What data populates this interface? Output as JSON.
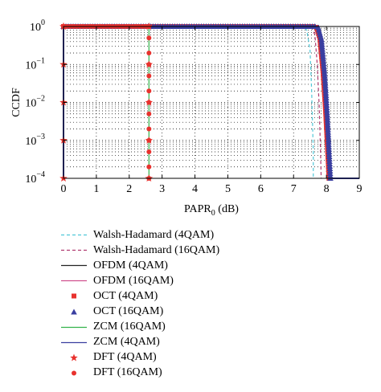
{
  "chart_data": {
    "type": "line",
    "title": "",
    "xlabel": "PAPR",
    "xlabel_sub": "0",
    "xlabel_unit": " (dB)",
    "ylabel": "CCDF",
    "xlim": [
      0,
      9
    ],
    "ylim": [
      0.0001,
      1
    ],
    "yscale": "log",
    "grid": true,
    "legend_position": "below",
    "x_ticks": [
      "0",
      "1",
      "2",
      "3",
      "4",
      "5",
      "6",
      "7",
      "8",
      "9"
    ],
    "y_ticks": [
      {
        "base": "10",
        "exp": "0"
      },
      {
        "base": "10",
        "exp": "−1"
      },
      {
        "base": "10",
        "exp": "−2"
      },
      {
        "base": "10",
        "exp": "−3"
      },
      {
        "base": "10",
        "exp": "−4"
      }
    ],
    "series": [
      {
        "name": "Walsh-Hadamard (4QAM)",
        "color": "#4fc8d8",
        "style": "dashed",
        "x": [
          0,
          7.2,
          7.3,
          7.4,
          7.5,
          7.55,
          7.6,
          7.6
        ],
        "y": [
          1,
          1,
          0.98,
          0.8,
          0.25,
          0.02,
          0.0005,
          0.0001
        ]
      },
      {
        "name": "Walsh-Hadamard (16QAM)",
        "color": "#b03a70",
        "style": "dashed",
        "x": [
          0,
          7.45,
          7.55,
          7.65,
          7.72,
          7.78,
          7.82,
          7.84
        ],
        "y": [
          1,
          1,
          0.95,
          0.6,
          0.1,
          0.008,
          0.0005,
          0.0001
        ]
      },
      {
        "name": "OFDM (4QAM)",
        "color": "#222222",
        "style": "solid",
        "x": [
          0,
          7.6,
          7.7,
          7.8,
          7.9,
          7.98,
          8.04,
          8.08
        ],
        "y": [
          1,
          1,
          0.95,
          0.5,
          0.06,
          0.005,
          0.0005,
          0.0001
        ]
      },
      {
        "name": "OFDM (16QAM)",
        "color": "#d0508e",
        "style": "solid",
        "x": [
          0,
          7.65,
          7.75,
          7.85,
          7.95,
          8.03,
          8.08,
          8.12
        ],
        "y": [
          1,
          1,
          0.93,
          0.45,
          0.05,
          0.004,
          0.0005,
          0.0001
        ]
      },
      {
        "name": "OCT (4QAM)",
        "color": "#e8322e",
        "style": "marker",
        "marker": "square",
        "x": [
          0,
          7.6,
          7.7,
          7.8,
          7.9,
          7.98,
          8.04,
          8.08
        ],
        "y": [
          1,
          1,
          0.95,
          0.5,
          0.06,
          0.005,
          0.0005,
          0.0001
        ]
      },
      {
        "name": "OCT (16QAM)",
        "color": "#3a3fa0",
        "style": "marker",
        "marker": "triangle",
        "x": [
          0,
          7.65,
          7.75,
          7.85,
          7.95,
          8.03,
          8.08,
          8.12
        ],
        "y": [
          1,
          1,
          0.93,
          0.45,
          0.05,
          0.004,
          0.0005,
          0.0001
        ]
      },
      {
        "name": "ZCM (16QAM)",
        "color": "#33b24a",
        "style": "solid",
        "x": [
          0,
          2.6,
          2.6
        ],
        "y": [
          1,
          1,
          0.0001
        ]
      },
      {
        "name": "ZCM (4QAM)",
        "color": "#3a3fa0",
        "style": "solid",
        "x": [
          0,
          0,
          7.6,
          7.7,
          7.8,
          7.9,
          7.98,
          8.04,
          8.1,
          9
        ],
        "y": [
          0.0001,
          1,
          1,
          0.95,
          0.5,
          0.06,
          0.005,
          0.0005,
          0.0001,
          0.0001
        ]
      },
      {
        "name": "DFT (4QAM)",
        "color": "#e8322e",
        "style": "marker",
        "marker": "star",
        "x": [
          0,
          0,
          0,
          0,
          0,
          0,
          2.6,
          2.6,
          2.6,
          2.6,
          2.6
        ],
        "y": [
          1,
          0.1,
          0.01,
          0.001,
          0.0001,
          1,
          0.1,
          0.01,
          0.001,
          0.0001,
          1
        ]
      },
      {
        "name": "DFT (16QAM)",
        "color": "#e8322e",
        "style": "marker",
        "marker": "circle",
        "x": [
          0,
          0.1,
          0.2,
          0.3,
          0.4,
          0.5,
          0.6,
          0.7,
          0.8,
          0.9,
          1.0,
          1.1,
          1.2,
          1.3,
          1.4,
          1.5,
          1.6,
          1.7,
          1.8,
          1.9,
          2.0,
          2.1,
          2.2,
          2.3,
          2.4,
          2.5,
          2.6,
          2.6,
          2.6,
          2.6,
          2.6,
          2.6,
          2.6,
          2.6,
          2.6,
          2.6,
          2.6,
          2.6,
          2.6
        ],
        "y": [
          1,
          1,
          1,
          1,
          1,
          1,
          1,
          1,
          1,
          1,
          1,
          1,
          1,
          1,
          1,
          1,
          1,
          1,
          1,
          1,
          1,
          1,
          1,
          1,
          1,
          1,
          1,
          0.5,
          0.2,
          0.1,
          0.05,
          0.02,
          0.01,
          0.005,
          0.002,
          0.001,
          0.0005,
          0.0002,
          0.0001
        ]
      }
    ]
  }
}
